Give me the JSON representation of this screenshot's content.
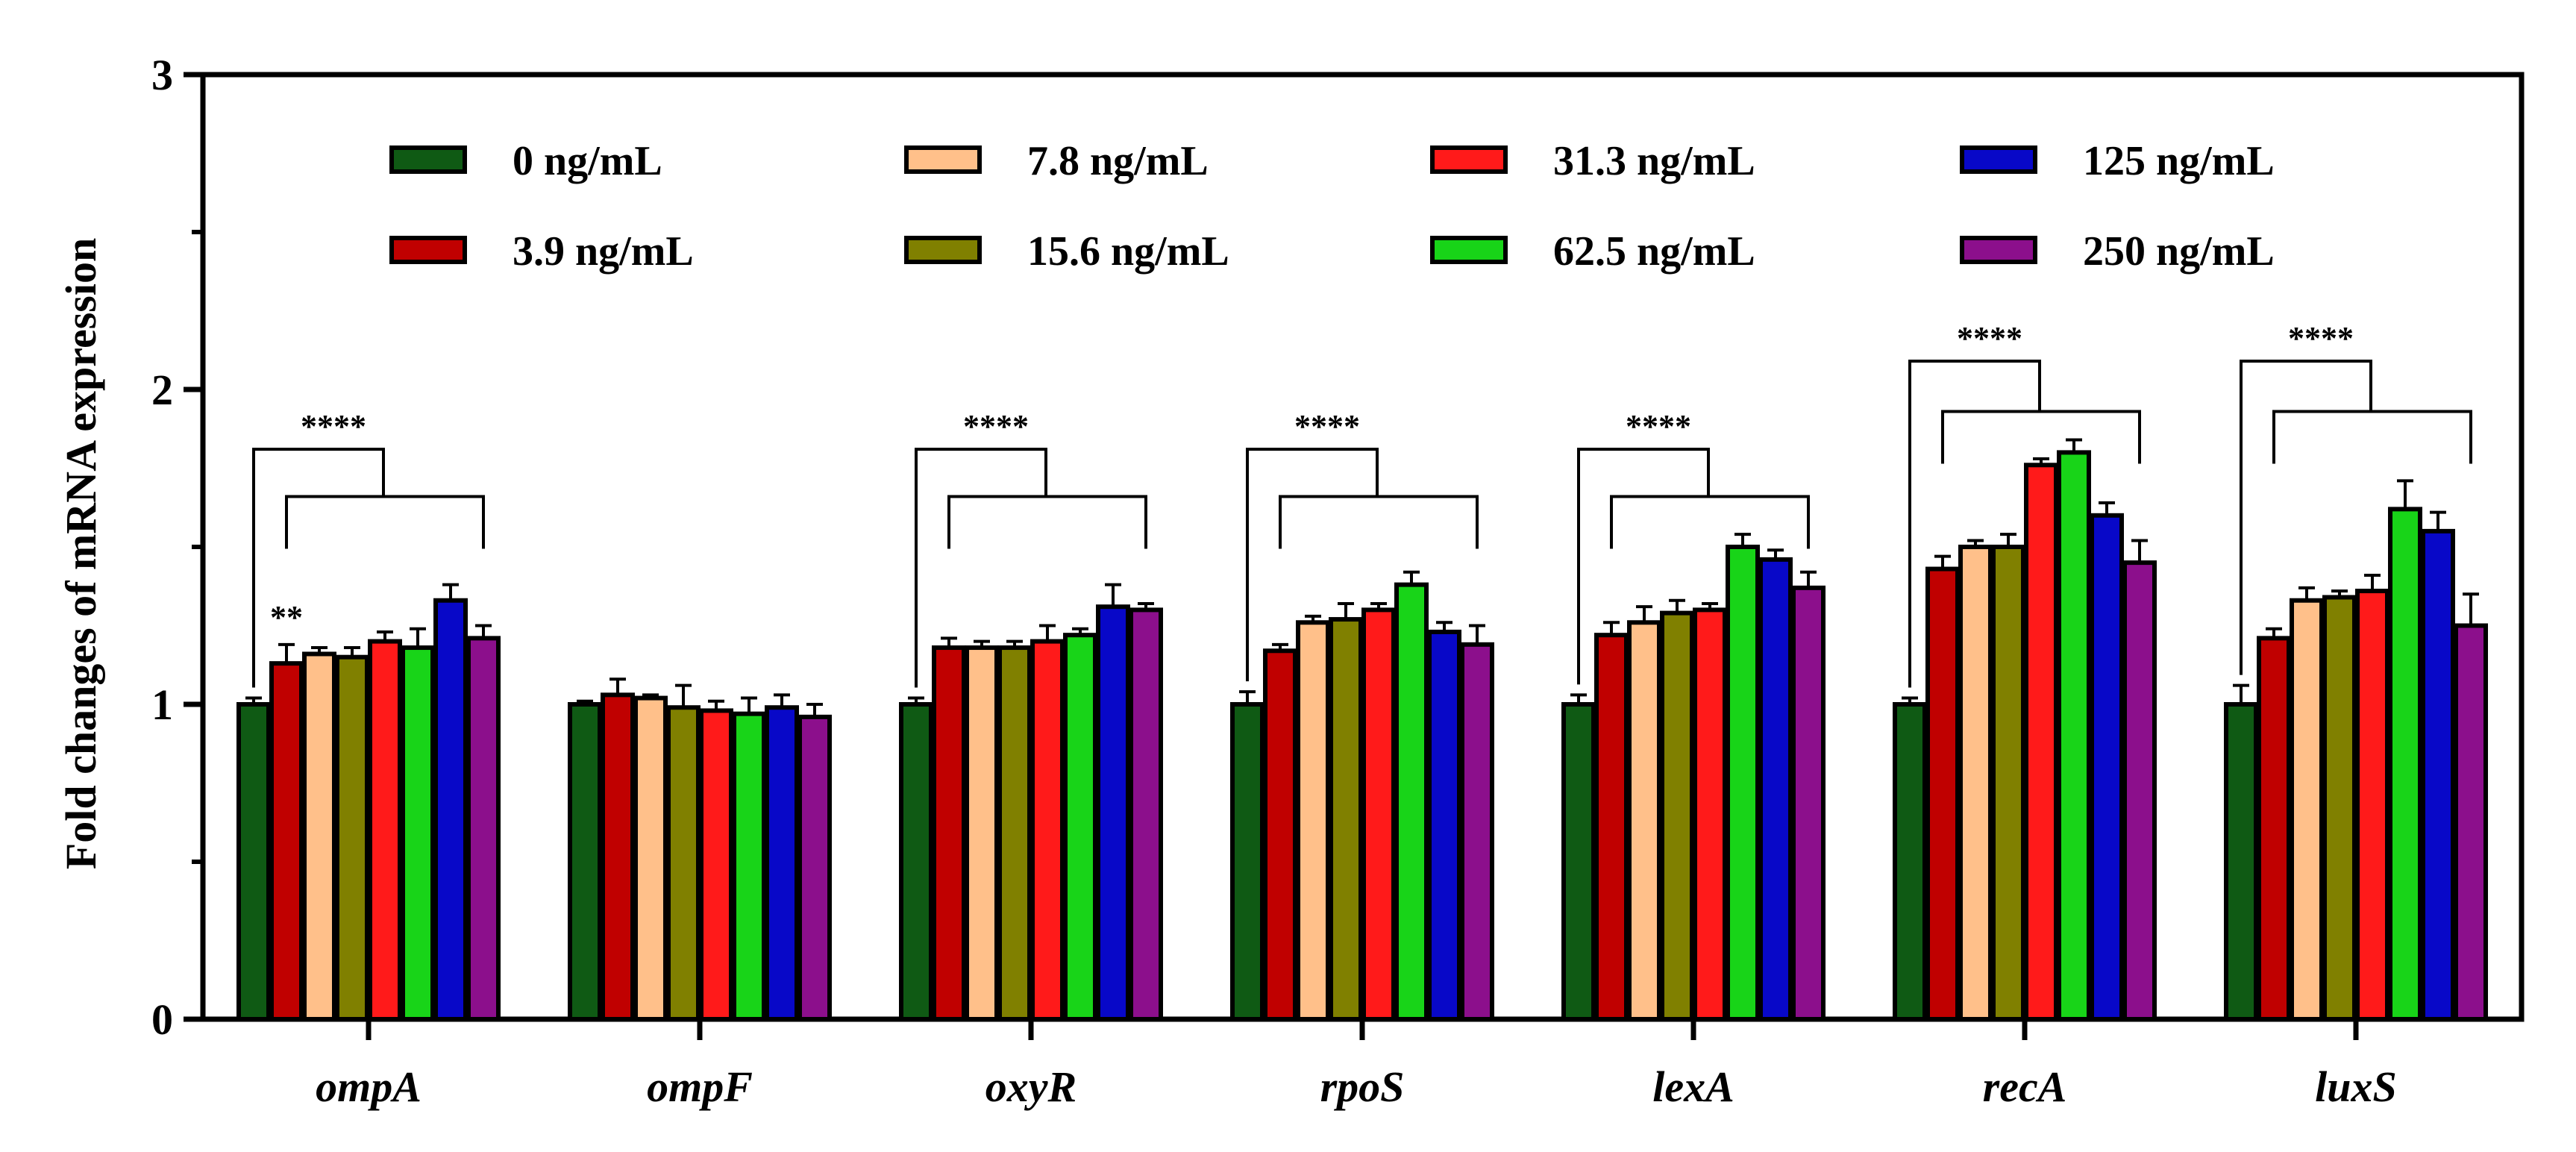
{
  "chart_data": {
    "type": "bar",
    "title": "",
    "xlabel": "",
    "ylabel": "Fold changes of mRNA expression",
    "ylim": [
      0,
      3
    ],
    "yticks": [
      "0",
      "1",
      "2",
      "3"
    ],
    "categories": [
      "ompA",
      "ompF",
      "oxyR",
      "rpoS",
      "lexA",
      "recA",
      "luxS"
    ],
    "legend_position": "top",
    "series": [
      {
        "name": "0 ng/mL",
        "color": "#0f5a14",
        "values": [
          1.0,
          1.0,
          1.0,
          1.0,
          1.0,
          1.0,
          1.0
        ],
        "errors": [
          0.02,
          0.01,
          0.02,
          0.04,
          0.03,
          0.02,
          0.06
        ]
      },
      {
        "name": "3.9 ng/mL",
        "color": "#c00000",
        "values": [
          1.13,
          1.03,
          1.18,
          1.17,
          1.22,
          1.43,
          1.21
        ],
        "errors": [
          0.06,
          0.05,
          0.03,
          0.02,
          0.04,
          0.04,
          0.03
        ]
      },
      {
        "name": "7.8 ng/mL",
        "color": "#ffc08a",
        "values": [
          1.16,
          1.02,
          1.18,
          1.26,
          1.26,
          1.5,
          1.33
        ],
        "errors": [
          0.02,
          0.01,
          0.02,
          0.02,
          0.05,
          0.02,
          0.04
        ]
      },
      {
        "name": "15.6 ng/mL",
        "color": "#808000",
        "values": [
          1.15,
          0.99,
          1.18,
          1.27,
          1.29,
          1.5,
          1.34
        ],
        "errors": [
          0.03,
          0.07,
          0.02,
          0.05,
          0.04,
          0.04,
          0.02
        ]
      },
      {
        "name": "31.3 ng/mL",
        "color": "#ff1a1a",
        "values": [
          1.2,
          0.98,
          1.2,
          1.3,
          1.3,
          1.76,
          1.36
        ],
        "errors": [
          0.03,
          0.03,
          0.05,
          0.02,
          0.02,
          0.02,
          0.05
        ]
      },
      {
        "name": "62.5 ng/mL",
        "color": "#18d418",
        "values": [
          1.18,
          0.97,
          1.22,
          1.38,
          1.5,
          1.8,
          1.62
        ],
        "errors": [
          0.06,
          0.05,
          0.02,
          0.04,
          0.04,
          0.04,
          0.09
        ]
      },
      {
        "name": "125 ng/mL",
        "color": "#0808c8",
        "values": [
          1.33,
          0.99,
          1.31,
          1.23,
          1.46,
          1.6,
          1.55
        ],
        "errors": [
          0.05,
          0.04,
          0.07,
          0.03,
          0.03,
          0.04,
          0.06
        ]
      },
      {
        "name": "250 ng/mL",
        "color": "#8c0f8c",
        "values": [
          1.21,
          0.96,
          1.3,
          1.19,
          1.37,
          1.45,
          1.25
        ],
        "errors": [
          0.04,
          0.04,
          0.02,
          0.06,
          0.05,
          0.07,
          0.1
        ]
      }
    ],
    "annotations": [
      {
        "category": "ompA",
        "label": "****",
        "bracket_levels": [
          1.81,
          1.66
        ]
      },
      {
        "category": "ompA",
        "label": "**",
        "target_series": "3.9 ng/mL"
      },
      {
        "category": "oxyR",
        "label": "****",
        "bracket_levels": [
          1.81,
          1.66
        ]
      },
      {
        "category": "rpoS",
        "label": "****",
        "bracket_levels": [
          1.81,
          1.66
        ]
      },
      {
        "category": "lexA",
        "label": "****",
        "bracket_levels": [
          1.81,
          1.66
        ]
      },
      {
        "category": "recA",
        "label": "****",
        "bracket_levels": [
          2.09,
          1.93
        ]
      },
      {
        "category": "luxS",
        "label": "****",
        "bracket_levels": [
          2.09,
          1.93
        ]
      }
    ]
  }
}
